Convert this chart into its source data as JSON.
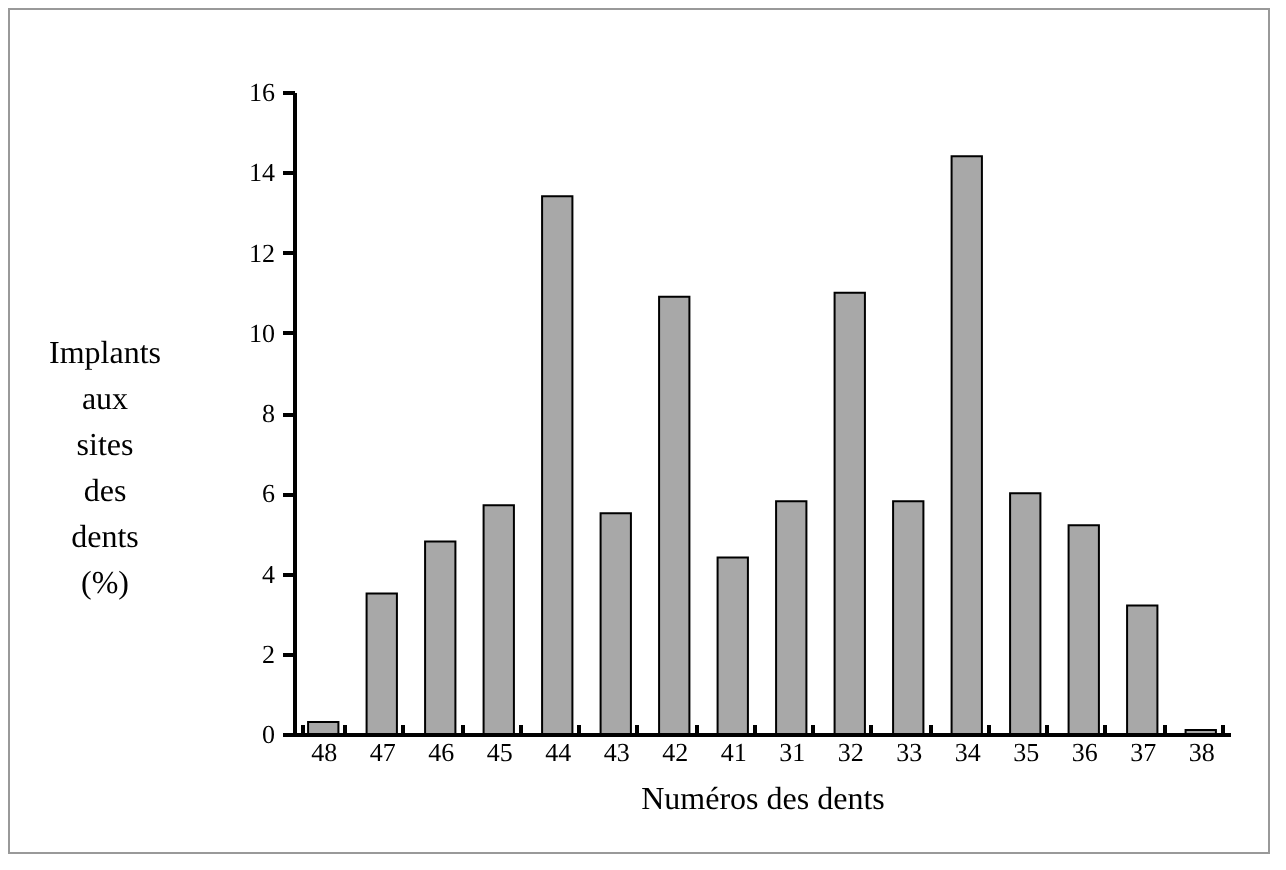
{
  "chart_data": {
    "type": "bar",
    "xlabel": "Numéros des dents",
    "ylabel": "Implants aux sites des dents (%)",
    "categories": [
      "48",
      "47",
      "46",
      "45",
      "44",
      "43",
      "42",
      "41",
      "31",
      "32",
      "33",
      "34",
      "35",
      "36",
      "37",
      "38"
    ],
    "values": [
      0.3,
      3.5,
      4.8,
      5.7,
      13.4,
      5.5,
      10.9,
      4.4,
      5.8,
      11.0,
      5.8,
      14.4,
      6.0,
      5.2,
      3.2,
      0.1
    ],
    "color": "#a8a8a8",
    "ylim": [
      0,
      16
    ],
    "yticks": [
      0,
      2,
      4,
      6,
      8,
      10,
      12,
      14,
      16
    ],
    "grid": false
  }
}
